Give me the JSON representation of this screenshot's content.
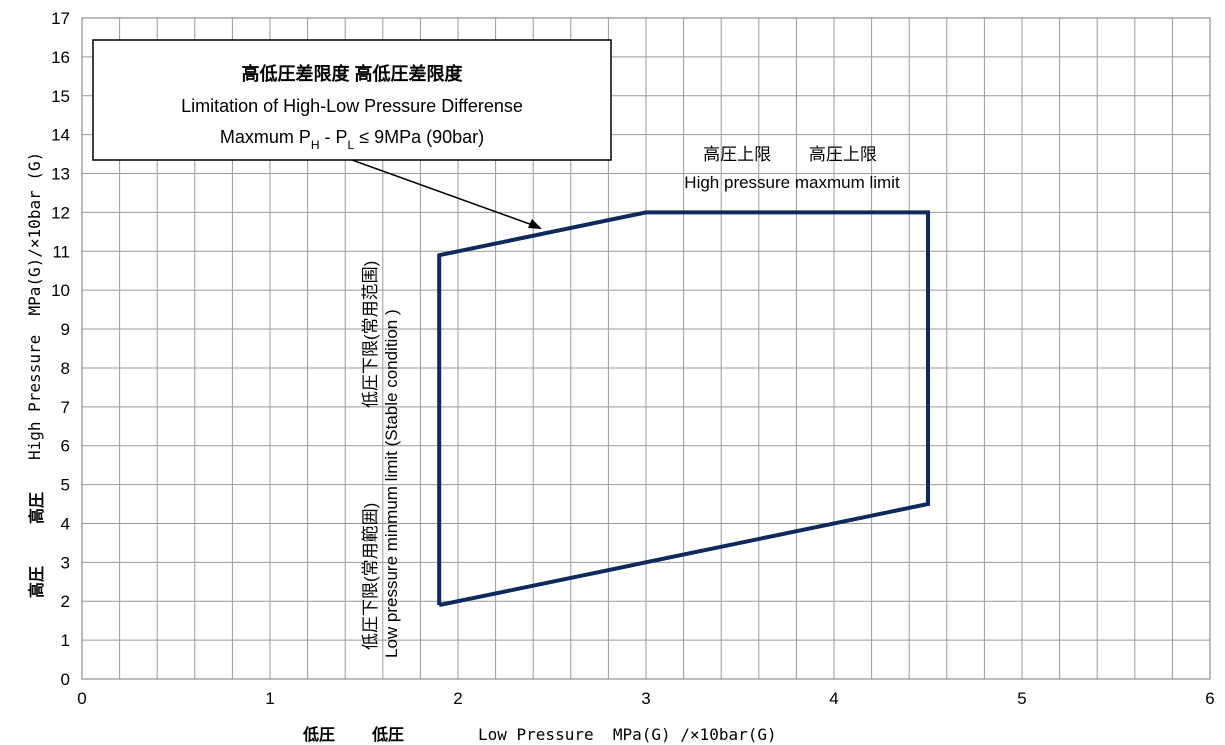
{
  "chart_data": {
    "type": "line",
    "xlim": [
      0,
      6
    ],
    "ylim": [
      0,
      17
    ],
    "x_major_step": 1,
    "x_minor_step": 0.2,
    "y_step": 1,
    "grid": true,
    "x_tick_labels": [
      "0",
      "1",
      "2",
      "3",
      "4",
      "5",
      "6"
    ],
    "y_tick_labels": [
      "0",
      "1",
      "2",
      "3",
      "4",
      "5",
      "6",
      "7",
      "8",
      "9",
      "10",
      "11",
      "12",
      "13",
      "14",
      "15",
      "16",
      "17"
    ],
    "xlabel": {
      "jp1": "低圧",
      "jp2": "低圧",
      "en": "Low Pressure  MPa(G) /×10bar(G)"
    },
    "ylabel": {
      "jp1": "高圧",
      "jp2": "高圧",
      "en": "High Pressure  MPa(G)/×10bar (G)"
    },
    "series": [
      {
        "color": "#0d2a5c",
        "points": [
          [
            1.9,
            1.9
          ],
          [
            1.9,
            10.9
          ],
          [
            3.0,
            12.0
          ],
          [
            4.5,
            12.0
          ],
          [
            4.5,
            4.5
          ],
          [
            1.9,
            1.9
          ]
        ]
      }
    ],
    "annotations": {
      "callout": {
        "title": "高低圧差限度  高低圧差限度",
        "line2": "Limitation of High-Low Pressure Differense",
        "line3_a": "Maxmum P",
        "line3_sub1": "H",
        "line3_b": " - P",
        "line3_sub2": "L",
        "line3_c": " ≤ 9MPa (90bar)"
      },
      "high_limit_jp": "高圧上限        高圧上限",
      "high_limit_en": "High pressure maxmum limit",
      "low_limit_jp_top": "低圧下限(常用范围)",
      "low_limit_jp_bottom": "低圧下限(常用範囲)",
      "low_limit_en": "Low pressure minmum limit (Stable condition )"
    }
  }
}
